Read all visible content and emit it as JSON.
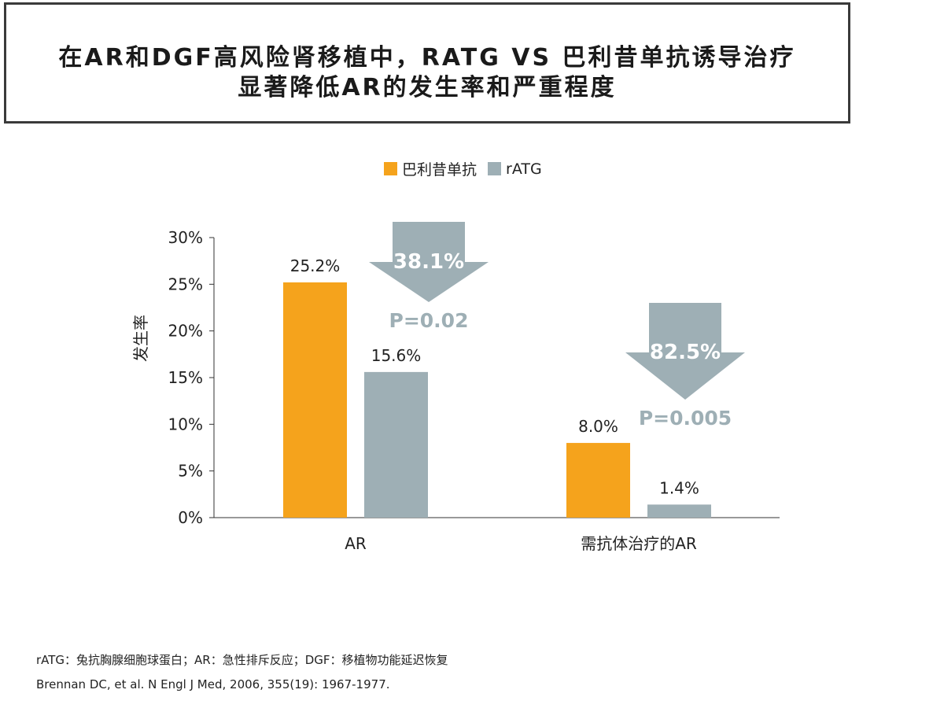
{
  "title": {
    "line1": "在AR和DGF高风险肾移植中，RATG VS 巴利昔单抗诱导治疗",
    "line2": "显著降低AR的发生率和严重程度"
  },
  "colors": {
    "basiliximab": "#f5a31c",
    "ratg": "#9eafb5",
    "arrow": "#9eafb5",
    "pvalue": "#9eafb5"
  },
  "chart_data": {
    "type": "bar",
    "categories": [
      "AR",
      "需抗体治疗的AR"
    ],
    "series": [
      {
        "name": "巴利昔单抗",
        "values": [
          25.2,
          8.0
        ]
      },
      {
        "name": "rATG",
        "values": [
          15.6,
          1.4
        ]
      }
    ],
    "value_labels": [
      [
        "25.2%",
        "8.0%"
      ],
      [
        "15.6%",
        "1.4%"
      ]
    ],
    "ylabel": "发生率",
    "ylim": [
      0,
      30
    ],
    "yticks": [
      "0%",
      "5%",
      "10%",
      "15%",
      "20%",
      "25%",
      "30%"
    ],
    "legend_position": "top",
    "annotations": [
      {
        "category": "AR",
        "reduction": "38.1%",
        "pvalue": "P=0.02"
      },
      {
        "category": "需抗体治疗的AR",
        "reduction": "82.5%",
        "pvalue": "P=0.005"
      }
    ]
  },
  "footer": {
    "abbrev": "rATG：兔抗胸腺细胞球蛋白；AR：急性排斥反应；DGF：移植物功能延迟恢复",
    "reference": "Brennan DC, et al. N Engl J Med, 2006, 355(19): 1967-1977."
  }
}
